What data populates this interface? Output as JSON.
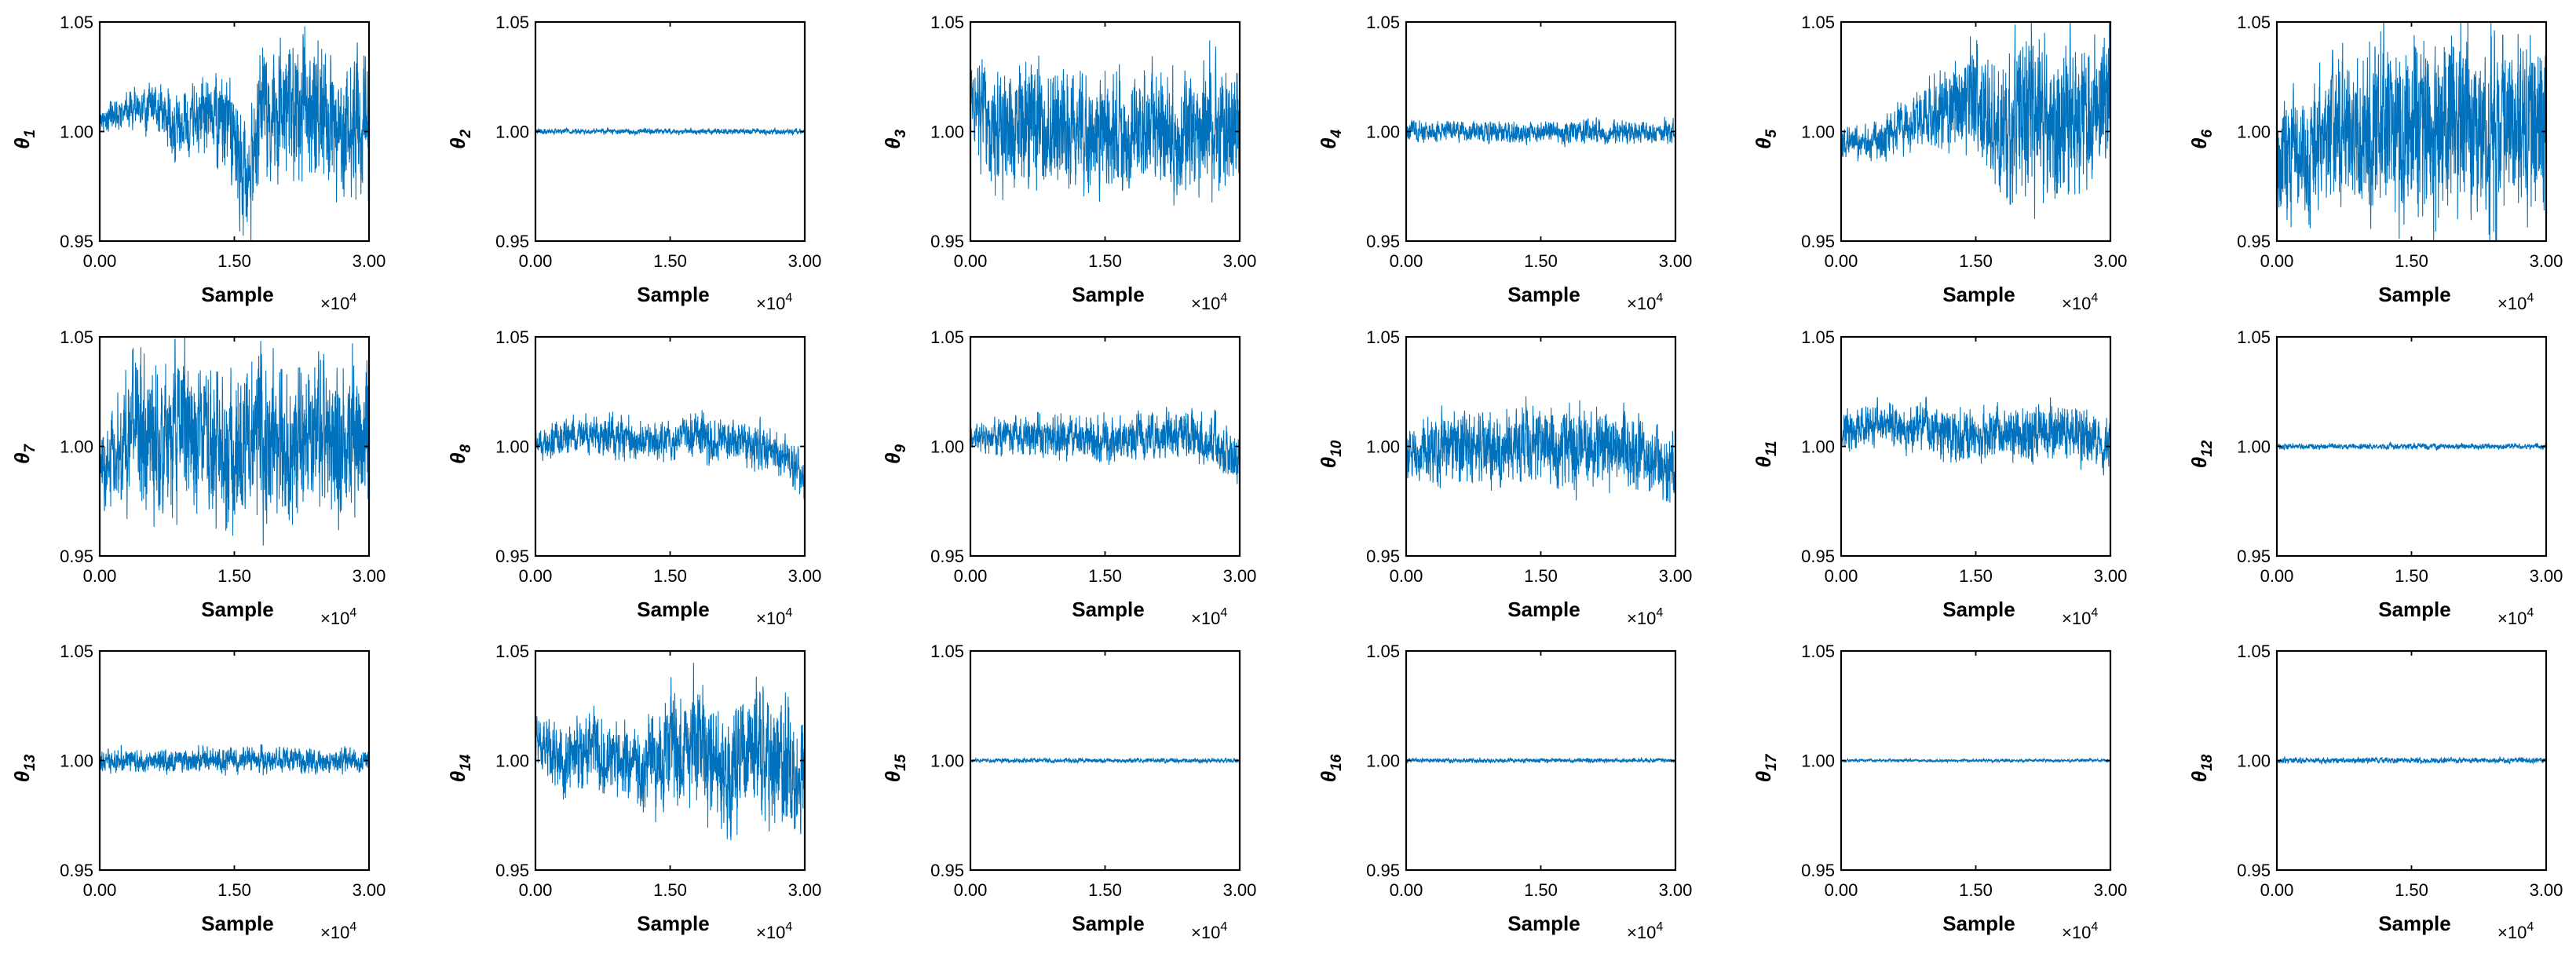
{
  "figure": {
    "series_color": "#0072BD",
    "x_axis_label": "Sample",
    "x_multiplier": "×10",
    "x_multiplier_exp": "4",
    "x_tick_labels": [
      "0.00",
      "1.50",
      "3.00"
    ],
    "y_tick_labels": [
      "0.95",
      "1.00",
      "1.05"
    ],
    "y_symbol": "θ"
  },
  "chart_data": [
    {
      "type": "line",
      "ylabel": "θ1",
      "subscript": "1",
      "xlim": [
        0,
        30000
      ],
      "ylim": [
        0.95,
        1.05
      ],
      "series": [
        {
          "values": [
            [
              0,
              1.005
            ],
            [
              3000,
              1.01
            ],
            [
              6000,
              1.01
            ],
            [
              9000,
              1.0
            ],
            [
              12000,
              1.01
            ],
            [
              15000,
              1.0
            ],
            [
              16500,
              0.975
            ],
            [
              18000,
              1.01
            ],
            [
              21000,
              1.01
            ],
            [
              24000,
              1.01
            ],
            [
              27000,
              1.0
            ],
            [
              30000,
              1.0
            ]
          ],
          "amplitude": [
            0.006,
            0.01,
            0.013,
            0.018,
            0.02,
            0.028,
            0.035,
            0.035,
            0.04,
            0.042,
            0.04,
            0.04
          ]
        }
      ]
    },
    {
      "type": "line",
      "ylabel": "θ2",
      "subscript": "2",
      "xlim": [
        0,
        30000
      ],
      "ylim": [
        0.95,
        1.05
      ],
      "series": [
        {
          "values": [
            [
              0,
              1.0
            ],
            [
              30000,
              1.0
            ]
          ],
          "amplitude": [
            0.0015,
            0.0015
          ]
        }
      ]
    },
    {
      "type": "line",
      "ylabel": "θ3",
      "subscript": "3",
      "xlim": [
        0,
        30000
      ],
      "ylim": [
        0.95,
        1.05
      ],
      "series": [
        {
          "values": [
            [
              0,
              1.015
            ],
            [
              3000,
              1.0
            ],
            [
              6000,
              1.01
            ],
            [
              9000,
              1.0
            ],
            [
              12000,
              1.0
            ],
            [
              15000,
              1.0
            ],
            [
              18000,
              0.995
            ],
            [
              21000,
              1.0
            ],
            [
              24000,
              1.0
            ],
            [
              27000,
              1.005
            ],
            [
              30000,
              1.0
            ]
          ],
          "amplitude": [
            0.025,
            0.03,
            0.035,
            0.033,
            0.03,
            0.032,
            0.03,
            0.03,
            0.032,
            0.035,
            0.035
          ]
        }
      ]
    },
    {
      "type": "line",
      "ylabel": "θ4",
      "subscript": "4",
      "xlim": [
        0,
        30000
      ],
      "ylim": [
        0.95,
        1.05
      ],
      "series": [
        {
          "values": [
            [
              0,
              1.0
            ],
            [
              15000,
              1.0
            ],
            [
              30000,
              1.0
            ]
          ],
          "amplitude": [
            0.006,
            0.006,
            0.006
          ]
        }
      ]
    },
    {
      "type": "line",
      "ylabel": "θ5",
      "subscript": "5",
      "xlim": [
        0,
        30000
      ],
      "ylim": [
        0.95,
        1.05
      ],
      "series": [
        {
          "values": [
            [
              0,
              0.995
            ],
            [
              3000,
              0.995
            ],
            [
              6000,
              1.0
            ],
            [
              9000,
              1.005
            ],
            [
              12000,
              1.01
            ],
            [
              15000,
              1.015
            ],
            [
              18000,
              1.0
            ],
            [
              21000,
              1.01
            ],
            [
              24000,
              1.0
            ],
            [
              27000,
              1.01
            ],
            [
              30000,
              1.01
            ]
          ],
          "amplitude": [
            0.008,
            0.01,
            0.012,
            0.015,
            0.025,
            0.03,
            0.04,
            0.045,
            0.045,
            0.04,
            0.04
          ]
        }
      ]
    },
    {
      "type": "line",
      "ylabel": "θ6",
      "subscript": "6",
      "xlim": [
        0,
        30000
      ],
      "ylim": [
        0.95,
        1.05
      ],
      "series": [
        {
          "values": [
            [
              0,
              0.985
            ],
            [
              3000,
              0.99
            ],
            [
              6000,
              1.0
            ],
            [
              9000,
              1.0
            ],
            [
              12000,
              1.0
            ],
            [
              15000,
              1.005
            ],
            [
              18000,
              1.0
            ],
            [
              21000,
              1.0
            ],
            [
              24000,
              0.995
            ],
            [
              27000,
              1.0
            ],
            [
              30000,
              1.0
            ]
          ],
          "amplitude": [
            0.03,
            0.035,
            0.04,
            0.045,
            0.05,
            0.05,
            0.05,
            0.05,
            0.05,
            0.05,
            0.05
          ]
        }
      ]
    },
    {
      "type": "line",
      "ylabel": "θ7",
      "subscript": "7",
      "xlim": [
        0,
        30000
      ],
      "ylim": [
        0.95,
        1.05
      ],
      "series": [
        {
          "values": [
            [
              0,
              0.985
            ],
            [
              3000,
              1.01
            ],
            [
              6000,
              1.0
            ],
            [
              9000,
              1.01
            ],
            [
              12000,
              1.005
            ],
            [
              15000,
              1.0
            ],
            [
              18000,
              1.005
            ],
            [
              21000,
              0.995
            ],
            [
              24000,
              1.005
            ],
            [
              27000,
              1.0
            ],
            [
              30000,
              1.01
            ]
          ],
          "amplitude": [
            0.02,
            0.035,
            0.04,
            0.042,
            0.042,
            0.04,
            0.042,
            0.042,
            0.04,
            0.042,
            0.04
          ]
        }
      ]
    },
    {
      "type": "line",
      "ylabel": "θ8",
      "subscript": "8",
      "xlim": [
        0,
        30000
      ],
      "ylim": [
        0.95,
        1.05
      ],
      "series": [
        {
          "values": [
            [
              0,
              1.0
            ],
            [
              3000,
              1.005
            ],
            [
              6000,
              1.005
            ],
            [
              9000,
              1.003
            ],
            [
              12000,
              1.003
            ],
            [
              15000,
              1.002
            ],
            [
              18000,
              1.005
            ],
            [
              21000,
              1.002
            ],
            [
              24000,
              1.0
            ],
            [
              27000,
              0.998
            ],
            [
              30000,
              0.985
            ]
          ],
          "amplitude": [
            0.008,
            0.01,
            0.01,
            0.012,
            0.01,
            0.01,
            0.012,
            0.012,
            0.012,
            0.012,
            0.012
          ]
        }
      ]
    },
    {
      "type": "line",
      "ylabel": "θ9",
      "subscript": "9",
      "xlim": [
        0,
        30000
      ],
      "ylim": [
        0.95,
        1.05
      ],
      "series": [
        {
          "values": [
            [
              0,
              1.003
            ],
            [
              3000,
              1.005
            ],
            [
              6000,
              1.005
            ],
            [
              9000,
              1.005
            ],
            [
              12000,
              1.003
            ],
            [
              15000,
              1.003
            ],
            [
              18000,
              1.004
            ],
            [
              21000,
              1.005
            ],
            [
              24000,
              1.006
            ],
            [
              27000,
              1.002
            ],
            [
              30000,
              0.99
            ]
          ],
          "amplitude": [
            0.006,
            0.01,
            0.01,
            0.012,
            0.012,
            0.012,
            0.012,
            0.012,
            0.014,
            0.014,
            0.014
          ]
        }
      ]
    },
    {
      "type": "line",
      "ylabel": "θ10",
      "subscript": "10",
      "xlim": [
        0,
        30000
      ],
      "ylim": [
        0.95,
        1.05
      ],
      "series": [
        {
          "values": [
            [
              0,
              0.995
            ],
            [
              3000,
              1.0
            ],
            [
              6000,
              1.0
            ],
            [
              9000,
              1.0
            ],
            [
              12000,
              1.0
            ],
            [
              15000,
              1.0
            ],
            [
              18000,
              0.998
            ],
            [
              21000,
              1.0
            ],
            [
              24000,
              1.0
            ],
            [
              27000,
              0.995
            ],
            [
              30000,
              0.99
            ]
          ],
          "amplitude": [
            0.012,
            0.018,
            0.018,
            0.02,
            0.02,
            0.02,
            0.02,
            0.02,
            0.02,
            0.02,
            0.02
          ]
        }
      ]
    },
    {
      "type": "line",
      "ylabel": "θ11",
      "subscript": "11",
      "xlim": [
        0,
        30000
      ],
      "ylim": [
        0.95,
        1.05
      ],
      "series": [
        {
          "values": [
            [
              0,
              1.005
            ],
            [
              3000,
              1.01
            ],
            [
              6000,
              1.01
            ],
            [
              9000,
              1.01
            ],
            [
              12000,
              1.005
            ],
            [
              15000,
              1.005
            ],
            [
              18000,
              1.008
            ],
            [
              21000,
              1.005
            ],
            [
              24000,
              1.008
            ],
            [
              27000,
              1.005
            ],
            [
              30000,
              1.0
            ]
          ],
          "amplitude": [
            0.01,
            0.012,
            0.013,
            0.013,
            0.014,
            0.014,
            0.014,
            0.015,
            0.016,
            0.015,
            0.015
          ]
        }
      ]
    },
    {
      "type": "line",
      "ylabel": "θ12",
      "subscript": "12",
      "xlim": [
        0,
        30000
      ],
      "ylim": [
        0.95,
        1.05
      ],
      "series": [
        {
          "values": [
            [
              0,
              1.0
            ],
            [
              30000,
              1.0
            ]
          ],
          "amplitude": [
            0.0015,
            0.0015
          ]
        }
      ]
    },
    {
      "type": "line",
      "ylabel": "θ13",
      "subscript": "13",
      "xlim": [
        0,
        30000
      ],
      "ylim": [
        0.95,
        1.05
      ],
      "series": [
        {
          "values": [
            [
              0,
              1.0
            ],
            [
              15000,
              1.0
            ],
            [
              30000,
              1.0
            ]
          ],
          "amplitude": [
            0.006,
            0.007,
            0.006
          ]
        }
      ]
    },
    {
      "type": "line",
      "ylabel": "θ14",
      "subscript": "14",
      "xlim": [
        0,
        30000
      ],
      "ylim": [
        0.95,
        1.05
      ],
      "series": [
        {
          "values": [
            [
              0,
              1.01
            ],
            [
              3000,
              1.0
            ],
            [
              6000,
              1.005
            ],
            [
              9000,
              1.0
            ],
            [
              12000,
              0.995
            ],
            [
              15000,
              1.005
            ],
            [
              18000,
              1.01
            ],
            [
              21000,
              0.995
            ],
            [
              24000,
              1.005
            ],
            [
              27000,
              1.0
            ],
            [
              30000,
              0.995
            ]
          ],
          "amplitude": [
            0.015,
            0.018,
            0.02,
            0.02,
            0.025,
            0.03,
            0.03,
            0.035,
            0.035,
            0.035,
            0.035
          ]
        }
      ]
    },
    {
      "type": "line",
      "ylabel": "θ15",
      "subscript": "15",
      "xlim": [
        0,
        30000
      ],
      "ylim": [
        0.95,
        1.05
      ],
      "series": [
        {
          "values": [
            [
              0,
              1.0
            ],
            [
              30000,
              1.0
            ]
          ],
          "amplitude": [
            0.0012,
            0.0012
          ]
        }
      ]
    },
    {
      "type": "line",
      "ylabel": "θ16",
      "subscript": "16",
      "xlim": [
        0,
        30000
      ],
      "ylim": [
        0.95,
        1.05
      ],
      "series": [
        {
          "values": [
            [
              0,
              1.0
            ],
            [
              30000,
              1.0
            ]
          ],
          "amplitude": [
            0.0012,
            0.0012
          ]
        }
      ]
    },
    {
      "type": "line",
      "ylabel": "θ17",
      "subscript": "17",
      "xlim": [
        0,
        30000
      ],
      "ylim": [
        0.95,
        1.05
      ],
      "series": [
        {
          "values": [
            [
              0,
              1.0
            ],
            [
              30000,
              1.0
            ]
          ],
          "amplitude": [
            0.0008,
            0.0008
          ]
        }
      ]
    },
    {
      "type": "line",
      "ylabel": "θ18",
      "subscript": "18",
      "xlim": [
        0,
        30000
      ],
      "ylim": [
        0.95,
        1.05
      ],
      "series": [
        {
          "values": [
            [
              0,
              1.0
            ],
            [
              30000,
              1.0
            ]
          ],
          "amplitude": [
            0.0015,
            0.0015
          ]
        }
      ]
    }
  ]
}
